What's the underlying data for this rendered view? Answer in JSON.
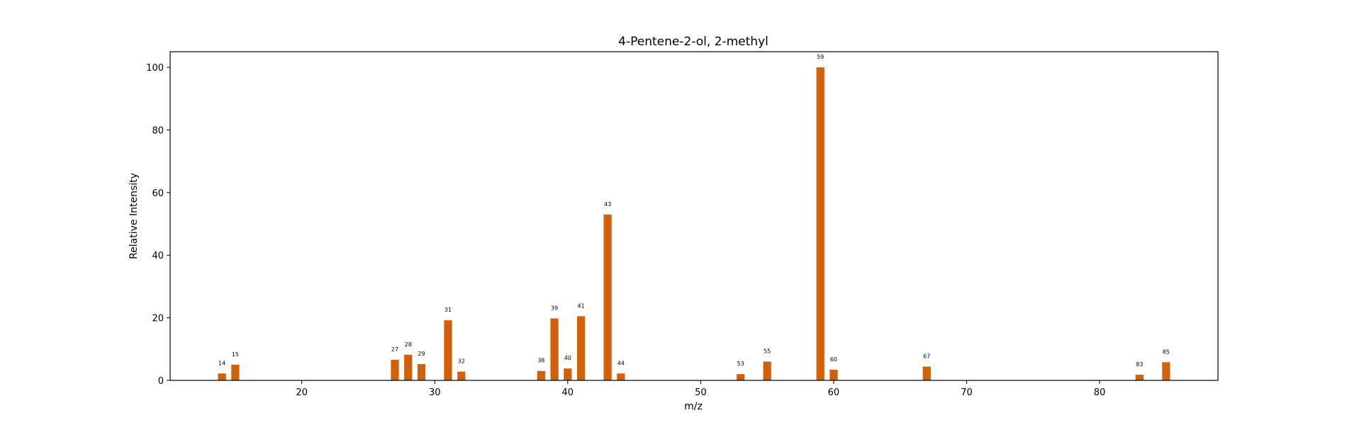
{
  "chart_data": {
    "type": "bar",
    "title": "4-Pentene-2-ol, 2-methyl",
    "xlabel": "m/z",
    "ylabel": "Relative Intensity",
    "xlim": [
      10.1,
      88.9
    ],
    "ylim": [
      0,
      105
    ],
    "xticks": [
      20,
      30,
      40,
      50,
      60,
      70,
      80
    ],
    "yticks": [
      0,
      20,
      40,
      60,
      80,
      100
    ],
    "grid": false,
    "bar_color": "#d2600a",
    "series": [
      {
        "x": [
          14,
          15,
          27,
          28,
          29,
          31,
          32,
          38,
          39,
          40,
          41,
          43,
          44,
          53,
          55,
          59,
          60,
          67,
          83,
          85
        ],
        "values": [
          2.2,
          5.0,
          6.6,
          8.2,
          5.2,
          19.2,
          2.8,
          3.0,
          19.8,
          3.8,
          20.5,
          53.0,
          2.2,
          2.0,
          6.0,
          100.0,
          3.4,
          4.4,
          1.8,
          5.8
        ]
      }
    ],
    "data_labels": [
      "14",
      "15",
      "27",
      "28",
      "29",
      "31",
      "32",
      "38",
      "39",
      "40",
      "41",
      "43",
      "44",
      "53",
      "55",
      "59",
      "60",
      "67",
      "83",
      "85"
    ]
  }
}
